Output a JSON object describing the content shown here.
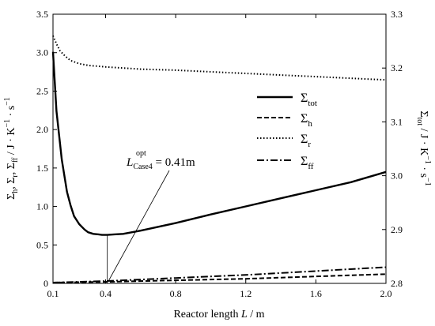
{
  "chart_data": {
    "type": "line",
    "x_axis": {
      "label_main": "Reactor length ",
      "label_var": "L",
      "label_unit": " / m",
      "range": [
        0.1,
        2.0
      ],
      "ticks": [
        0.1,
        0.4,
        0.8,
        1.2,
        1.6,
        2.0
      ],
      "tick_labels": [
        "0.1",
        "0.4",
        "0.8",
        "1.2",
        "1.6",
        "2.0"
      ]
    },
    "y_left": {
      "label": "Σh, Σr, Σff / J · K⁻¹ · s⁻¹",
      "label_parts": {
        "sigma": "Σ",
        "h": "h",
        "r": "r",
        "ff": "ff",
        "sep": ", ",
        "unit": " / J · K",
        "exp1": "−1",
        "dot": " · s",
        "exp2": "−1"
      },
      "range": [
        0,
        3.5
      ],
      "ticks": [
        0,
        0.5,
        1.0,
        1.5,
        2.0,
        2.5,
        3.0,
        3.5
      ],
      "tick_labels": [
        "0",
        "0.5",
        "1.0",
        "1.5",
        "2.0",
        "2.5",
        "3.0",
        "3.5"
      ]
    },
    "y_right": {
      "label_parts": {
        "sigma": "Σ",
        "sub": "tot",
        "unit": " / J · K",
        "exp1": "−1",
        "dot": " · s",
        "exp2": "−1"
      },
      "range": [
        2.8,
        3.3
      ],
      "ticks": [
        2.8,
        2.9,
        3.0,
        3.1,
        3.2,
        3.3
      ],
      "tick_labels": [
        "2.8",
        "2.9",
        "3.0",
        "3.1",
        "3.2",
        "3.3"
      ]
    },
    "legend": {
      "placement": "right-middle",
      "entries": [
        {
          "sigma": "Σ",
          "sub": "tot",
          "style": "solid"
        },
        {
          "sigma": "Σ",
          "sub": "h",
          "style": "dashed"
        },
        {
          "sigma": "Σ",
          "sub": "r",
          "style": "dotted"
        },
        {
          "sigma": "Σ",
          "sub": "ff",
          "style": "dashdot"
        }
      ]
    },
    "annotation": {
      "var": "L",
      "sup": "opt",
      "sub": "Case4",
      "value": " = 0.41m",
      "x": 0.41
    },
    "series": [
      {
        "id": "tot",
        "axis": "right",
        "style": "solid",
        "x": [
          0.1,
          0.12,
          0.15,
          0.18,
          0.2,
          0.22,
          0.25,
          0.28,
          0.3,
          0.33,
          0.36,
          0.38,
          0.41,
          0.45,
          0.5,
          0.6,
          0.8,
          1.0,
          1.2,
          1.4,
          1.6,
          1.8,
          2.0
        ],
        "y": [
          3.23,
          3.12,
          3.03,
          2.97,
          2.945,
          2.925,
          2.91,
          2.9,
          2.895,
          2.892,
          2.891,
          2.89,
          2.89,
          2.891,
          2.892,
          2.898,
          2.912,
          2.928,
          2.943,
          2.958,
          2.973,
          2.988,
          3.007
        ]
      },
      {
        "id": "h",
        "axis": "left",
        "style": "dashed",
        "x": [
          0.1,
          0.4,
          0.8,
          1.2,
          1.6,
          2.0
        ],
        "y": [
          0.01,
          0.02,
          0.04,
          0.06,
          0.09,
          0.12
        ]
      },
      {
        "id": "r",
        "axis": "right",
        "style": "dotted",
        "x": [
          0.1,
          0.12,
          0.14,
          0.17,
          0.2,
          0.25,
          0.3,
          0.4,
          0.6,
          0.8,
          1.0,
          1.2,
          1.4,
          1.6,
          1.8,
          2.0
        ],
        "y": [
          3.26,
          3.245,
          3.232,
          3.222,
          3.214,
          3.208,
          3.205,
          3.202,
          3.198,
          3.196,
          3.193,
          3.19,
          3.187,
          3.184,
          3.181,
          3.178
        ]
      },
      {
        "id": "ff",
        "axis": "left",
        "style": "dashdot",
        "x": [
          0.1,
          0.4,
          0.8,
          1.2,
          1.6,
          2.0
        ],
        "y": [
          0.01,
          0.03,
          0.07,
          0.11,
          0.16,
          0.21
        ]
      }
    ]
  }
}
